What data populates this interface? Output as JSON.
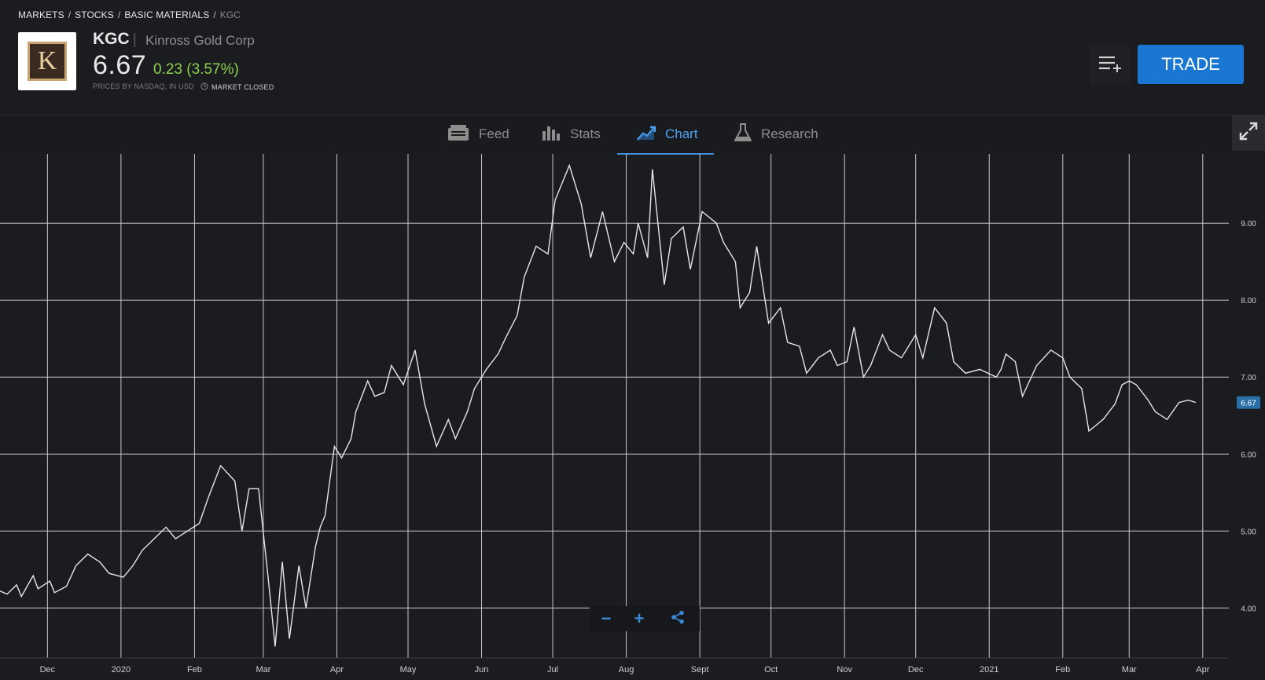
{
  "breadcrumb": {
    "items": [
      "MARKETS",
      "STOCKS",
      "BASIC MATERIALS"
    ],
    "current": "KGC",
    "separator": "/"
  },
  "instrument": {
    "logo_letter": "K",
    "ticker": "KGC",
    "name": "Kinross Gold Corp",
    "price": "6.67",
    "change": "0.23 (3.57%)",
    "price_source": "PRICES BY NASDAQ, IN USD",
    "market_status": "MARKET CLOSED"
  },
  "actions": {
    "watchlist_icon": "add-to-watchlist-icon",
    "trade_label": "TRADE"
  },
  "tabs": [
    {
      "label": "Feed",
      "icon": "feed-icon",
      "active": false
    },
    {
      "label": "Stats",
      "icon": "bar-chart-icon",
      "active": false
    },
    {
      "label": "Chart",
      "icon": "trend-chart-icon",
      "active": true
    },
    {
      "label": "Research",
      "icon": "flask-icon",
      "active": false
    }
  ],
  "colors": {
    "background": "#1b1c1f",
    "accent": "#1976d2",
    "positive": "#8bd14e",
    "line": "#e6e6e6",
    "grid": "#c8c8c8",
    "price_tag": "#2a6fa8"
  },
  "chart_data": {
    "type": "line",
    "title": "",
    "xlabel": "",
    "ylabel": "",
    "x_ticks": [
      "Dec",
      "2020",
      "Feb",
      "Mar",
      "Apr",
      "May",
      "Jun",
      "Jul",
      "Aug",
      "Sept",
      "Oct",
      "Nov",
      "Dec",
      "2021",
      "Feb",
      "Mar",
      "Apr"
    ],
    "y_ticks": [
      "4.00",
      "5.00",
      "6.00",
      "7.00",
      "8.00",
      "9.00"
    ],
    "ylim": [
      3.35,
      9.9
    ],
    "xlim": [
      "2019-11-11",
      "2021-04-12"
    ],
    "grid": true,
    "last_price_tag": "6.67",
    "series": [
      {
        "x": [
          "2019-11-11",
          "2019-11-14",
          "2019-11-18",
          "2019-11-20",
          "2019-11-25",
          "2019-11-27",
          "2019-12-02",
          "2019-12-04",
          "2019-12-09",
          "2019-12-13",
          "2019-12-18",
          "2019-12-23",
          "2019-12-27",
          "2020-01-02",
          "2020-01-06",
          "2020-01-10",
          "2020-01-15",
          "2020-01-20",
          "2020-01-24",
          "2020-01-29",
          "2020-02-03",
          "2020-02-07",
          "2020-02-12",
          "2020-02-18",
          "2020-02-21",
          "2020-02-24",
          "2020-02-28",
          "2020-03-03",
          "2020-03-06",
          "2020-03-09",
          "2020-03-12",
          "2020-03-16",
          "2020-03-19",
          "2020-03-23",
          "2020-03-25",
          "2020-03-27",
          "2020-03-31",
          "2020-04-03",
          "2020-04-07",
          "2020-04-09",
          "2020-04-14",
          "2020-04-17",
          "2020-04-21",
          "2020-04-24",
          "2020-04-29",
          "2020-05-04",
          "2020-05-08",
          "2020-05-13",
          "2020-05-18",
          "2020-05-21",
          "2020-05-26",
          "2020-05-29",
          "2020-06-03",
          "2020-06-08",
          "2020-06-11",
          "2020-06-16",
          "2020-06-19",
          "2020-06-24",
          "2020-06-29",
          "2020-07-02",
          "2020-07-08",
          "2020-07-13",
          "2020-07-17",
          "2020-07-22",
          "2020-07-27",
          "2020-07-31",
          "2020-08-04",
          "2020-08-06",
          "2020-08-10",
          "2020-08-12",
          "2020-08-17",
          "2020-08-20",
          "2020-08-25",
          "2020-08-28",
          "2020-09-02",
          "2020-09-08",
          "2020-09-11",
          "2020-09-16",
          "2020-09-18",
          "2020-09-22",
          "2020-09-25",
          "2020-09-30",
          "2020-10-05",
          "2020-10-08",
          "2020-10-13",
          "2020-10-16",
          "2020-10-21",
          "2020-10-26",
          "2020-10-29",
          "2020-11-02",
          "2020-11-05",
          "2020-11-09",
          "2020-11-12",
          "2020-11-17",
          "2020-11-20",
          "2020-11-25",
          "2020-12-01",
          "2020-12-04",
          "2020-12-09",
          "2020-12-14",
          "2020-12-17",
          "2020-12-22",
          "2020-12-28",
          "2021-01-04",
          "2021-01-06",
          "2021-01-08",
          "2021-01-12",
          "2021-01-15",
          "2021-01-21",
          "2021-01-27",
          "2021-02-01",
          "2021-02-04",
          "2021-02-09",
          "2021-02-12",
          "2021-02-18",
          "2021-02-23",
          "2021-02-26",
          "2021-03-01",
          "2021-03-04",
          "2021-03-09",
          "2021-03-12",
          "2021-03-17",
          "2021-03-22",
          "2021-03-26",
          "2021-03-29"
        ],
        "y": [
          4.22,
          4.18,
          4.3,
          4.15,
          4.42,
          4.25,
          4.35,
          4.2,
          4.28,
          4.55,
          4.7,
          4.6,
          4.45,
          4.4,
          4.55,
          4.75,
          4.9,
          5.05,
          4.9,
          5.0,
          5.1,
          5.45,
          5.85,
          5.65,
          5.0,
          5.55,
          5.55,
          4.4,
          3.5,
          4.6,
          3.6,
          4.55,
          4.0,
          4.8,
          5.05,
          5.2,
          6.1,
          5.95,
          6.2,
          6.55,
          6.95,
          6.75,
          6.8,
          7.15,
          6.9,
          7.35,
          6.65,
          6.1,
          6.45,
          6.2,
          6.55,
          6.85,
          7.1,
          7.3,
          7.5,
          7.8,
          8.3,
          8.7,
          8.6,
          9.3,
          9.75,
          9.25,
          8.55,
          9.15,
          8.5,
          8.75,
          8.6,
          9.0,
          8.55,
          9.7,
          8.2,
          8.8,
          8.95,
          8.4,
          9.15,
          9.0,
          8.75,
          8.5,
          7.9,
          8.1,
          8.7,
          7.7,
          7.9,
          7.45,
          7.4,
          7.05,
          7.25,
          7.35,
          7.15,
          7.2,
          7.65,
          7.0,
          7.15,
          7.55,
          7.35,
          7.25,
          7.55,
          7.25,
          7.9,
          7.7,
          7.2,
          7.05,
          7.1,
          7.0,
          7.1,
          7.3,
          7.2,
          6.75,
          7.15,
          7.35,
          7.25,
          7.0,
          6.85,
          6.3,
          6.45,
          6.65,
          6.9,
          6.95,
          6.9,
          6.7,
          6.55,
          6.45,
          6.67,
          6.7,
          6.67
        ]
      }
    ]
  }
}
